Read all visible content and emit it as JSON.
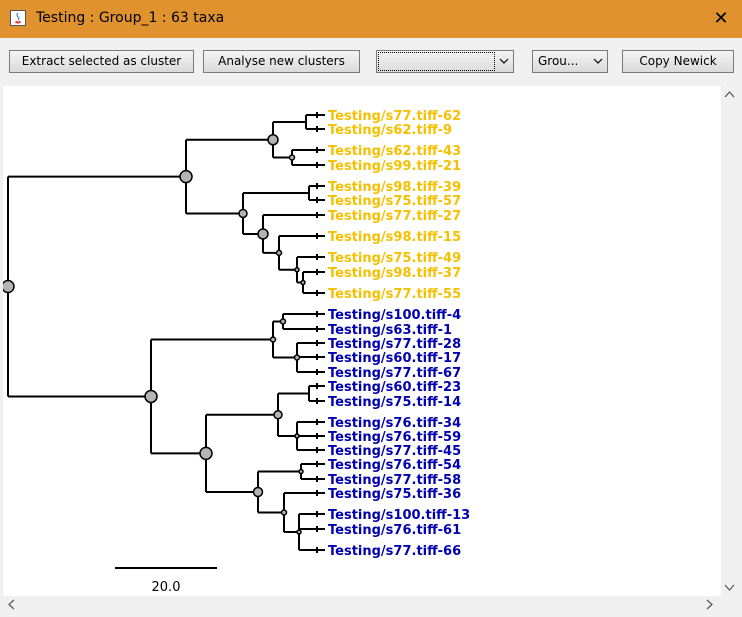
{
  "window": {
    "title": "Testing : Group_1 : 63 taxa",
    "close_glyph": "✕"
  },
  "toolbar": {
    "extract_label": "Extract selected as cluster",
    "analyse_label": "Analyse new clusters",
    "combo1_value": "",
    "group_value": "Grou...",
    "copy_newick_label": "Copy Newick"
  },
  "tree": {
    "leaves": [
      {
        "label": "Testing/s77.tiff-62",
        "color": "#f5c000"
      },
      {
        "label": "Testing/s62.tiff-9",
        "color": "#f5c000"
      },
      {
        "label": "Testing/s62.tiff-43",
        "color": "#f5c000"
      },
      {
        "label": "Testing/s99.tiff-21",
        "color": "#f5c000"
      },
      {
        "label": "Testing/s98.tiff-39",
        "color": "#f5c000"
      },
      {
        "label": "Testing/s75.tiff-57",
        "color": "#f5c000"
      },
      {
        "label": "Testing/s77.tiff-27",
        "color": "#f5c000"
      },
      {
        "label": "Testing/s98.tiff-15",
        "color": "#f5c000"
      },
      {
        "label": "Testing/s75.tiff-49",
        "color": "#f5c000"
      },
      {
        "label": "Testing/s98.tiff-37",
        "color": "#f5c000"
      },
      {
        "label": "Testing/s77.tiff-55",
        "color": "#f5c000"
      },
      {
        "label": "Testing/s100.tiff-4",
        "color": "#0000b0"
      },
      {
        "label": "Testing/s63.tiff-1",
        "color": "#0000b0"
      },
      {
        "label": "Testing/s77.tiff-28",
        "color": "#0000b0"
      },
      {
        "label": "Testing/s60.tiff-17",
        "color": "#0000b0"
      },
      {
        "label": "Testing/s77.tiff-67",
        "color": "#0000b0"
      },
      {
        "label": "Testing/s60.tiff-23",
        "color": "#0000b0"
      },
      {
        "label": "Testing/s75.tiff-14",
        "color": "#0000b0"
      },
      {
        "label": "Testing/s76.tiff-34",
        "color": "#0000b0"
      },
      {
        "label": "Testing/s76.tiff-59",
        "color": "#0000b0"
      },
      {
        "label": "Testing/s77.tiff-45",
        "color": "#0000b0"
      },
      {
        "label": "Testing/s76.tiff-54",
        "color": "#0000b0"
      },
      {
        "label": "Testing/s77.tiff-58",
        "color": "#0000b0"
      },
      {
        "label": "Testing/s75.tiff-36",
        "color": "#0000b0"
      },
      {
        "label": "Testing/s100.tiff-13",
        "color": "#0000b0"
      },
      {
        "label": "Testing/s76.tiff-61",
        "color": "#0000b0"
      },
      {
        "label": "Testing/s77.tiff-66",
        "color": "#0000b0"
      }
    ],
    "scale_label": "20.0",
    "line_color": "#000000",
    "node_fill": "#b4b4b4"
  }
}
